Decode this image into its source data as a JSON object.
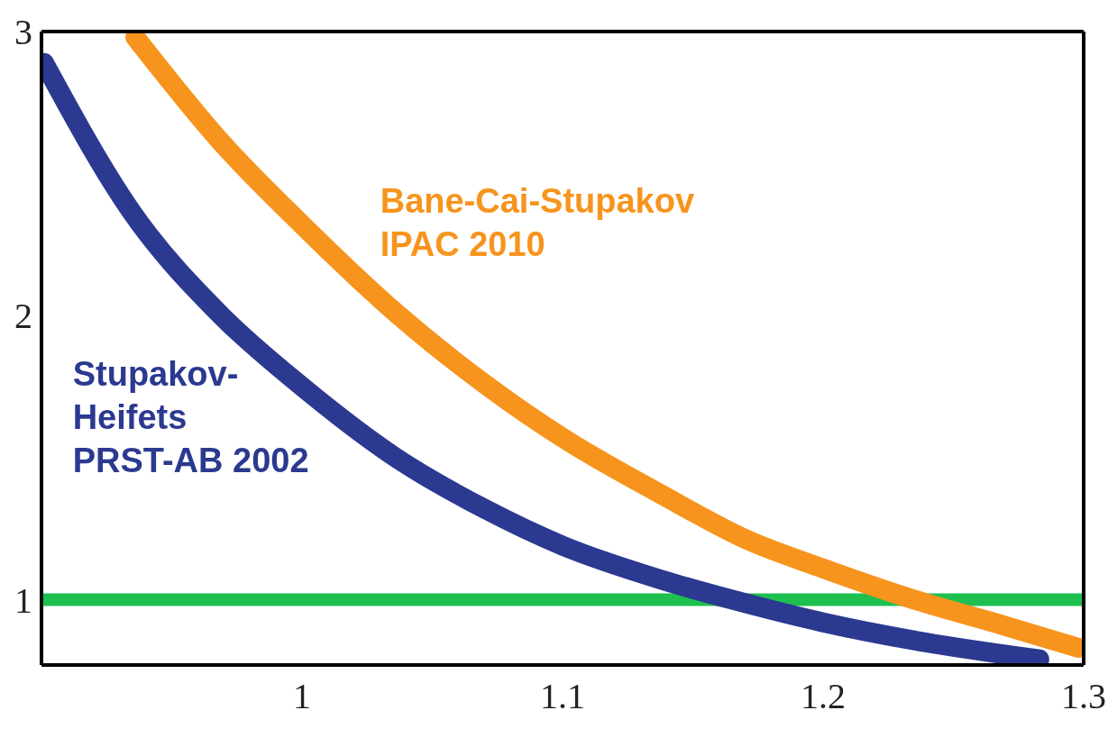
{
  "chart_data": {
    "type": "line",
    "xlim": [
      0.9,
      1.3
    ],
    "xticks": [
      1,
      1.1,
      1.2,
      1.3
    ],
    "ylim": [
      0.77,
      3
    ],
    "yticks": [
      1,
      2,
      3
    ],
    "marker": "none",
    "line_style": "solid",
    "series": [
      {
        "name": "Stupakov-\nHeifets\nPRST-AB 2002",
        "color": "#2b3990",
        "x": [
          0.901,
          0.935,
          0.969,
          1.0,
          1.036,
          1.07,
          1.1,
          1.138,
          1.165,
          1.2,
          1.239,
          1.283
        ],
        "values": [
          2.89,
          2.36,
          2.0,
          1.75,
          1.5,
          1.32,
          1.19,
          1.07,
          1.0,
          0.92,
          0.85,
          0.79
        ]
      },
      {
        "name": "Bane-Cai-Stupakov\nIPAC 2010",
        "color": "#f7941d",
        "x": [
          0.936,
          0.969,
          1.0,
          1.036,
          1.07,
          1.1,
          1.138,
          1.171,
          1.2,
          1.235,
          1.269,
          1.298
        ],
        "values": [
          2.98,
          2.61,
          2.32,
          2.01,
          1.76,
          1.57,
          1.37,
          1.21,
          1.11,
          1.0,
          0.91,
          0.83
        ]
      }
    ],
    "ref_lines": [
      {
        "axis": "y",
        "value": 1,
        "color": "#1dbf4f"
      }
    ]
  }
}
